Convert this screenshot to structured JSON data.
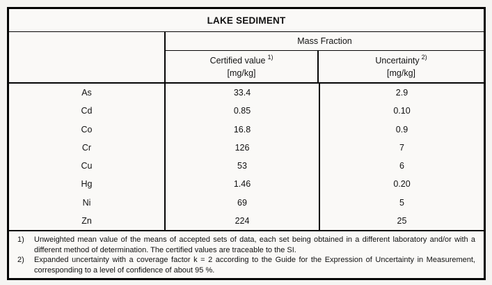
{
  "title": "LAKE SEDIMENT",
  "table": {
    "group_header": "Mass Fraction",
    "columns": [
      {
        "label": "Certified value",
        "superscript": "1)",
        "unit": "[mg/kg]"
      },
      {
        "label": "Uncertainty",
        "superscript": "2)",
        "unit": "[mg/kg]"
      }
    ],
    "rows": [
      {
        "element": "As",
        "certified_value": "33.4",
        "uncertainty": "2.9"
      },
      {
        "element": "Cd",
        "certified_value": "0.85",
        "uncertainty": "0.10"
      },
      {
        "element": "Co",
        "certified_value": "16.8",
        "uncertainty": "0.9"
      },
      {
        "element": "Cr",
        "certified_value": "126",
        "uncertainty": "7"
      },
      {
        "element": "Cu",
        "certified_value": "53",
        "uncertainty": "6"
      },
      {
        "element": "Hg",
        "certified_value": "1.46",
        "uncertainty": "0.20"
      },
      {
        "element": "Ni",
        "certified_value": "69",
        "uncertainty": "5"
      },
      {
        "element": "Zn",
        "certified_value": "224",
        "uncertainty": "25"
      }
    ]
  },
  "footnotes": [
    {
      "marker": "1)",
      "text": "Unweighted mean value of the means of accepted sets of data, each set being obtained in a different laboratory and/or with a different method of determination. The certified values are traceable to the SI."
    },
    {
      "marker": "2)",
      "text": "Expanded uncertainty with a coverage factor k = 2 according to the Guide for the Expression of Uncertainty in Measurement, corresponding to a level of confidence of about 95 %."
    }
  ]
}
